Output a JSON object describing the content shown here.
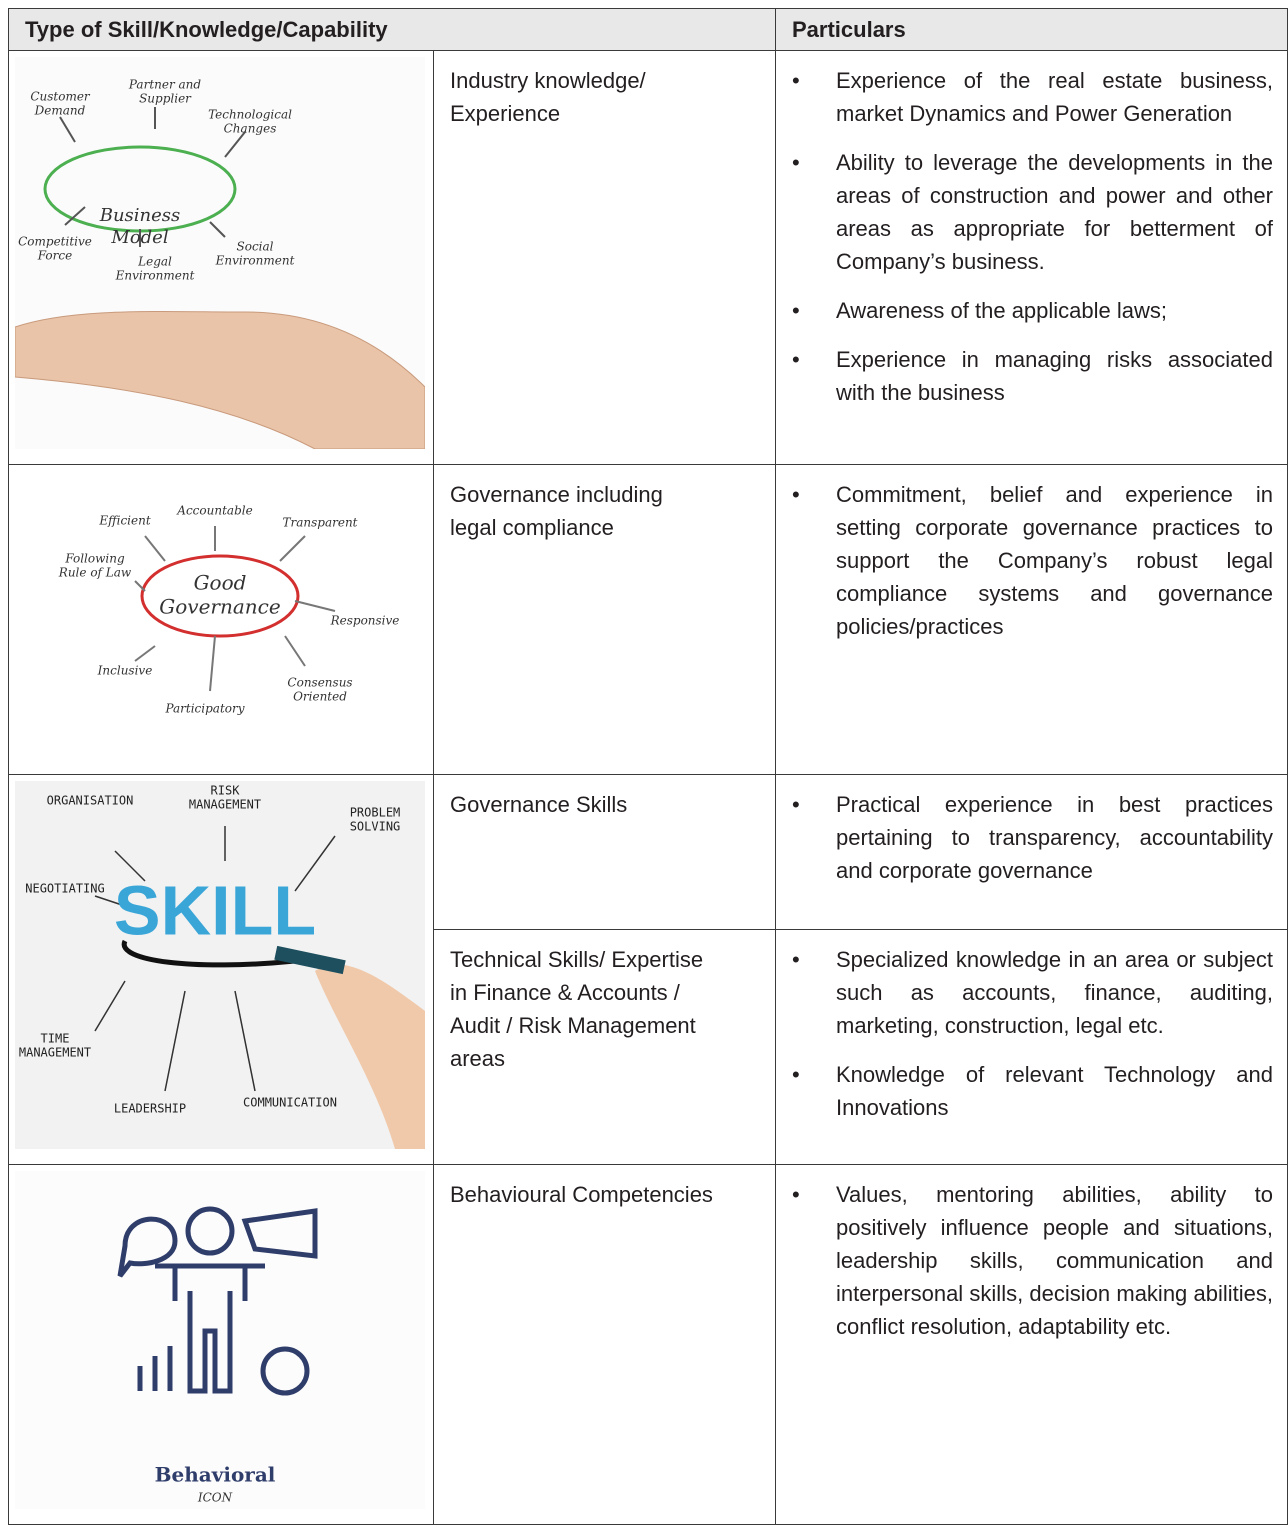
{
  "header": {
    "col1": "Type of Skill/Knowledge/Capability",
    "col2": "Particulars"
  },
  "groups": [
    {
      "image": {
        "center": [
          "Business",
          "Model"
        ],
        "labels": [
          [
            "Customer",
            "Demand"
          ],
          [
            "Partner and",
            "Supplier"
          ],
          [
            "Technological",
            "Changes"
          ],
          [
            "Competitive",
            "Force"
          ],
          [
            "Legal",
            "Environment"
          ],
          [
            "Social",
            "Environment"
          ]
        ]
      },
      "items": [
        {
          "type": [
            "Industry knowledge/",
            "Experience"
          ],
          "points": [
            "Experience of the real estate business, market Dynamics and Power Generation",
            "Ability to leverage the developments in the areas of construction and power and other areas as appropriate for betterment of Company’s business.",
            "Awareness of the applicable laws;",
            "Experience in managing risks associated with the business"
          ]
        }
      ]
    },
    {
      "image": {
        "center": [
          "Good",
          "Governance"
        ],
        "labels": [
          [
            "Efficient"
          ],
          [
            "Accountable"
          ],
          [
            "Transparent"
          ],
          [
            "Following",
            "Rule of Law"
          ],
          [
            "Responsive"
          ],
          [
            "Inclusive"
          ],
          [
            "Participatory"
          ],
          [
            "Consensus",
            "Oriented"
          ]
        ]
      },
      "items": [
        {
          "type": [
            "Governance including",
            "legal compliance"
          ],
          "points": [
            "Commitment, belief and experience in setting corporate governance practices to support the Company’s robust legal compliance systems and governance policies/practices"
          ]
        }
      ]
    },
    {
      "image": {
        "center": [
          "SKILL"
        ],
        "labels": [
          [
            "ORGANISATION"
          ],
          [
            "RISK",
            "MANAGEMENT"
          ],
          [
            "PROBLEM",
            "SOLVING"
          ],
          [
            "NEGOTIATING"
          ],
          [
            "TIME",
            "MANAGEMENT"
          ],
          [
            "LEADERSHIP"
          ],
          [
            "COMMUNICATION"
          ]
        ]
      },
      "items": [
        {
          "type": [
            "Governance Skills"
          ],
          "points": [
            "Practical experience in best practices pertaining to transparency, accountability and corporate governance"
          ]
        },
        {
          "type": [
            "Technical Skills/ Expertise",
            "in Finance & Accounts /",
            "Audit / Risk Management",
            "areas"
          ],
          "points": [
            "Specialized knowledge in an area or subject such as accounts, finance, auditing, marketing, construction, legal etc.",
            "Knowledge of relevant Technology and Innovations"
          ]
        }
      ]
    },
    {
      "image": {
        "center": [
          "Behavioral"
        ],
        "labels": [
          [
            "ICON"
          ]
        ]
      },
      "items": [
        {
          "type": [
            "Behavioural Competencies"
          ],
          "points": [
            "Values, mentoring abilities, ability to positively influence people and situations, leadership skills, communication and interpersonal skills, decision making abilities, conflict resolution, adaptability etc."
          ]
        }
      ]
    }
  ]
}
